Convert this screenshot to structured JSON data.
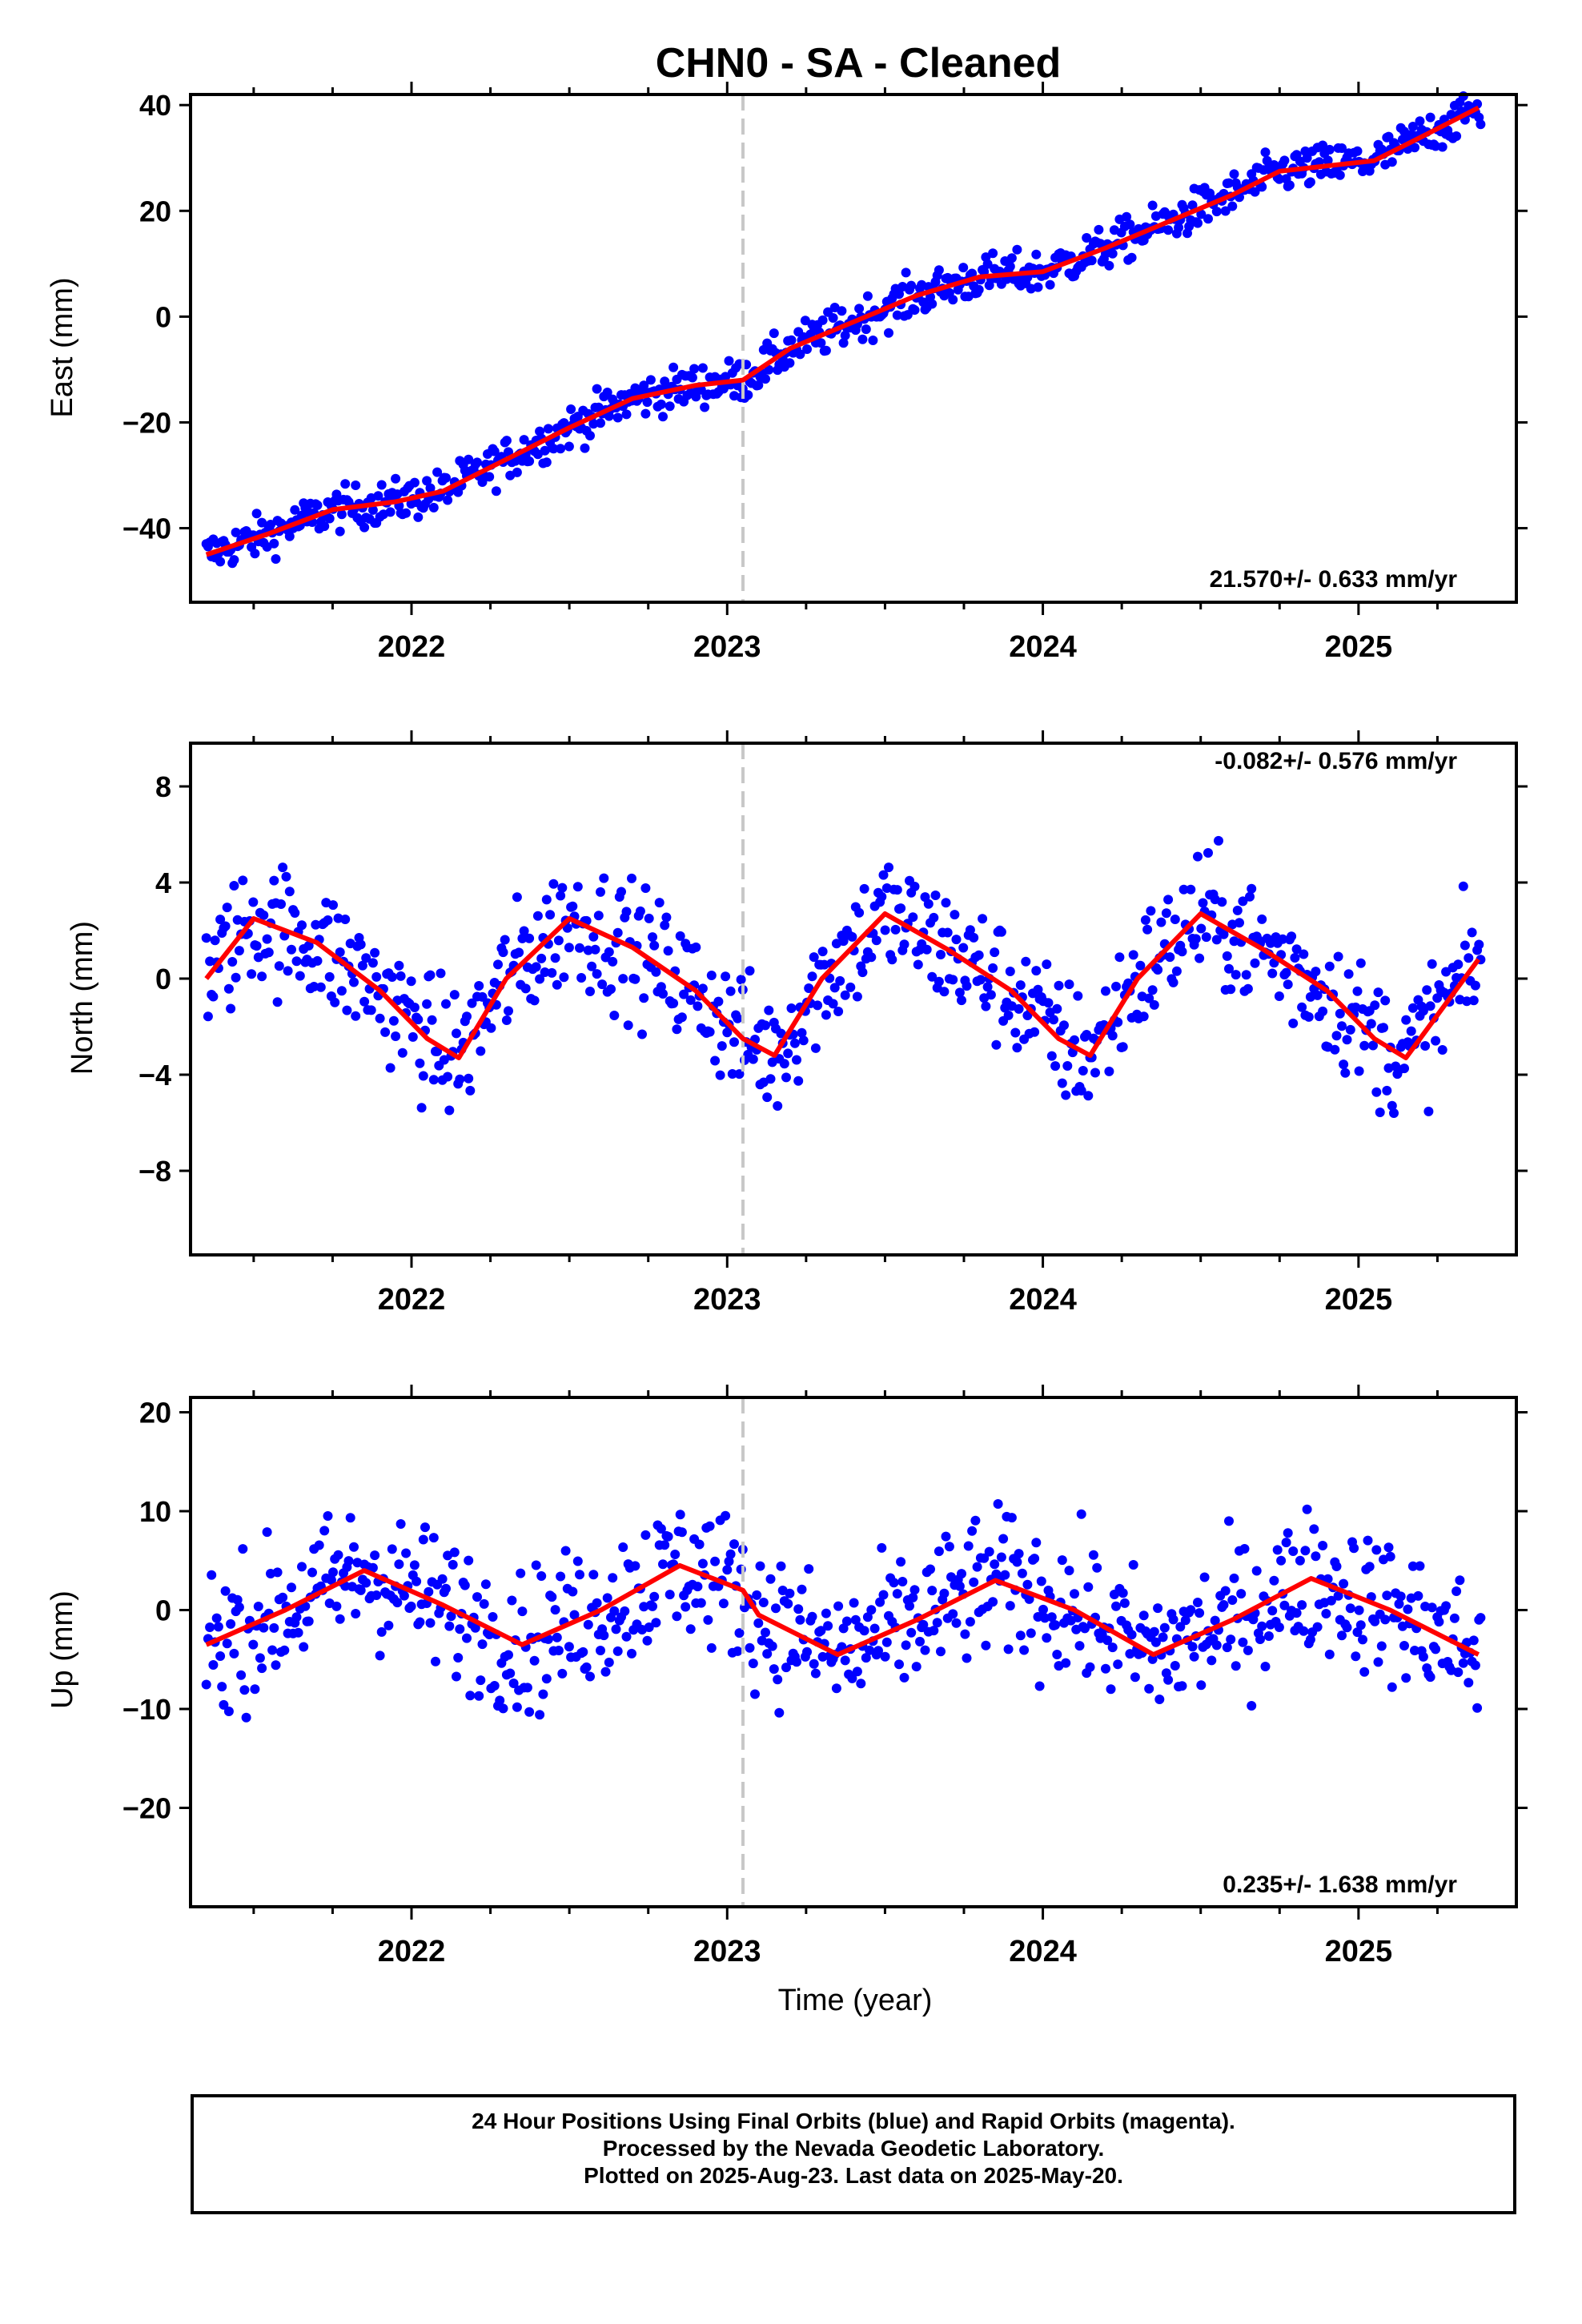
{
  "title": "CHN0  - SA - Cleaned",
  "footer": {
    "line1": "24 Hour Positions Using Final Orbits (blue) and Rapid Orbits (magenta).",
    "line2": "Processed by the Nevada Geodetic Laboratory.",
    "line3": "Plotted on 2025-Aug-23. Last data on 2025-May-20."
  },
  "colors": {
    "points": "#0000ff",
    "trend": "#ff0000",
    "marker": "#c8c8c8",
    "frame": "#000000"
  },
  "chart_data": [
    {
      "type": "scatter",
      "ylabel": "East (mm)",
      "xlabel": "",
      "xlim": [
        2021.3,
        2025.5
      ],
      "ylim": [
        -54,
        42
      ],
      "xticks": [
        2022,
        2023,
        2024,
        2025
      ],
      "yticks": [
        -40,
        -20,
        0,
        20,
        40
      ],
      "ytick_labels": [
        "−40",
        "−20",
        "0",
        "20",
        "40"
      ],
      "marker_line_x": 2023.05,
      "rate_label": "21.570+/- 0.633 mm/yr",
      "series": [
        {
          "values": [
            [
              2021.35,
              -45
            ],
            [
              2021.55,
              -41
            ],
            [
              2021.75,
              -36.5
            ],
            [
              2021.95,
              -35
            ],
            [
              2022.1,
              -33
            ],
            [
              2022.3,
              -27
            ],
            [
              2022.5,
              -21
            ],
            [
              2022.7,
              -15.5
            ],
            [
              2022.9,
              -13
            ],
            [
              2023.05,
              -12
            ],
            [
              2023.2,
              -6
            ],
            [
              2023.4,
              -1
            ],
            [
              2023.6,
              4
            ],
            [
              2023.8,
              7.5
            ],
            [
              2024.0,
              8.5
            ],
            [
              2024.2,
              13
            ],
            [
              2024.4,
              18
            ],
            [
              2024.6,
              23
            ],
            [
              2024.75,
              27.5
            ],
            [
              2024.9,
              28.5
            ],
            [
              2025.05,
              29.5
            ],
            [
              2025.2,
              34
            ],
            [
              2025.38,
              39.5
            ]
          ]
        }
      ]
    },
    {
      "type": "scatter",
      "ylabel": "North (mm)",
      "xlabel": "",
      "xlim": [
        2021.3,
        2025.5
      ],
      "ylim": [
        -11.5,
        9.8
      ],
      "xticks": [
        2022,
        2023,
        2024,
        2025
      ],
      "yticks": [
        -8,
        -4,
        0,
        4,
        8
      ],
      "ytick_labels": [
        "−8",
        "−4",
        "0",
        "4",
        "8"
      ],
      "marker_line_x": 2023.05,
      "rate_label": "-0.082+/- 0.576 mm/yr",
      "series": [
        {
          "values": [
            [
              2021.35,
              0
            ],
            [
              2021.5,
              2.5
            ],
            [
              2021.7,
              1.5
            ],
            [
              2021.9,
              -0.5
            ],
            [
              2022.05,
              -2.5
            ],
            [
              2022.15,
              -3.3
            ],
            [
              2022.3,
              0
            ],
            [
              2022.5,
              2.5
            ],
            [
              2022.7,
              1.3
            ],
            [
              2022.9,
              -0.5
            ],
            [
              2023.05,
              -2.5
            ],
            [
              2023.15,
              -3.2
            ],
            [
              2023.3,
              0
            ],
            [
              2023.5,
              2.7
            ],
            [
              2023.7,
              1.2
            ],
            [
              2023.9,
              -0.5
            ],
            [
              2024.05,
              -2.5
            ],
            [
              2024.15,
              -3.2
            ],
            [
              2024.3,
              0
            ],
            [
              2024.5,
              2.7
            ],
            [
              2024.7,
              1.2
            ],
            [
              2024.9,
              -0.5
            ],
            [
              2025.05,
              -2.5
            ],
            [
              2025.15,
              -3.3
            ],
            [
              2025.38,
              0.8
            ]
          ]
        }
      ]
    },
    {
      "type": "scatter",
      "ylabel": "Up (mm)",
      "xlabel": "Time (year)",
      "xlim": [
        2021.3,
        2025.5
      ],
      "ylim": [
        -30,
        21.5
      ],
      "xticks": [
        2022,
        2023,
        2024,
        2025
      ],
      "yticks": [
        -20,
        -10,
        0,
        10,
        20
      ],
      "ytick_labels": [
        "−20",
        "−10",
        "0",
        "10",
        "20"
      ],
      "marker_line_x": 2023.05,
      "rate_label": "0.235+/- 1.638 mm/yr",
      "series": [
        {
          "values": [
            [
              2021.35,
              -3.5
            ],
            [
              2021.6,
              0
            ],
            [
              2021.85,
              4
            ],
            [
              2022.1,
              0.5
            ],
            [
              2022.35,
              -3.5
            ],
            [
              2022.6,
              0
            ],
            [
              2022.85,
              4.5
            ],
            [
              2023.05,
              2
            ],
            [
              2023.1,
              -0.5
            ],
            [
              2023.35,
              -4.5
            ],
            [
              2023.6,
              -1
            ],
            [
              2023.85,
              3
            ],
            [
              2024.1,
              0
            ],
            [
              2024.35,
              -4.5
            ],
            [
              2024.6,
              -1
            ],
            [
              2024.85,
              3.2
            ],
            [
              2025.1,
              0
            ],
            [
              2025.38,
              -4.5
            ]
          ]
        }
      ]
    }
  ]
}
